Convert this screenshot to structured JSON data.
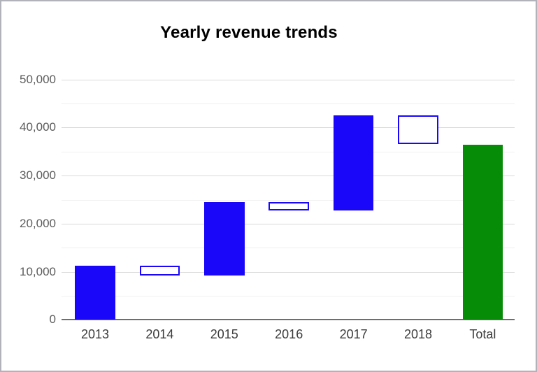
{
  "chart_data": {
    "type": "waterfall",
    "title": "Yearly revenue trends",
    "categories": [
      "2013",
      "2014",
      "2015",
      "2016",
      "2017",
      "2018",
      "Total"
    ],
    "bars": [
      {
        "label": "2013",
        "start": 0,
        "end": 11300,
        "delta": 11300,
        "kind": "increase"
      },
      {
        "label": "2014",
        "start": 11300,
        "end": 9200,
        "delta": -2100,
        "kind": "decrease"
      },
      {
        "label": "2015",
        "start": 9200,
        "end": 24500,
        "delta": 15300,
        "kind": "increase"
      },
      {
        "label": "2016",
        "start": 24500,
        "end": 22800,
        "delta": -1700,
        "kind": "decrease"
      },
      {
        "label": "2017",
        "start": 22800,
        "end": 42500,
        "delta": 19700,
        "kind": "increase"
      },
      {
        "label": "2018",
        "start": 42500,
        "end": 36500,
        "delta": -6000,
        "kind": "decrease"
      },
      {
        "label": "Total",
        "start": 0,
        "end": 36500,
        "delta": 36500,
        "kind": "total"
      }
    ],
    "ylim": [
      0,
      50000
    ],
    "y_ticks": [
      {
        "value": 0,
        "label": "0"
      },
      {
        "value": 10000,
        "label": "10,000"
      },
      {
        "value": 20000,
        "label": "20,000"
      },
      {
        "value": 30000,
        "label": "30,000"
      },
      {
        "value": 40000,
        "label": "40,000"
      },
      {
        "value": 50000,
        "label": "50,000"
      }
    ],
    "minor_gridline_step": 5000,
    "grid": true,
    "legend_position": "none",
    "xlabel": "",
    "ylabel": "",
    "colors": {
      "increase_fill": "#1a06f9",
      "decrease_fill": "#ffffff",
      "decrease_border": "#1a06f9",
      "total_fill": "#068c06",
      "major_gridline": "#d9d9d9",
      "minor_gridline": "#f0f0f0",
      "axis_line": "#6e6e6e"
    }
  }
}
